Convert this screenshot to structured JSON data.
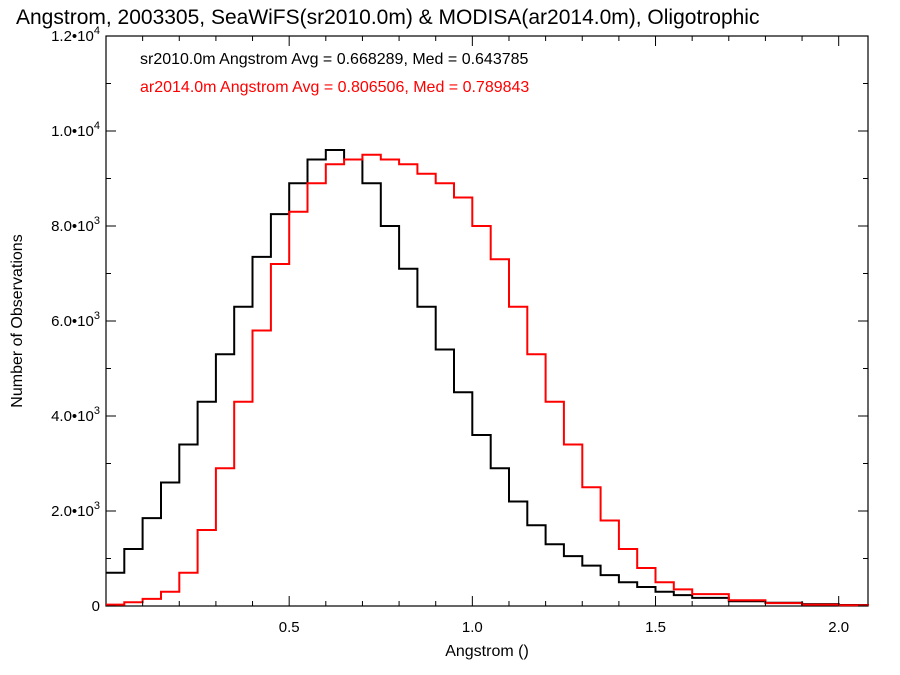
{
  "chart_data": {
    "type": "line",
    "title": "Angstrom, 2003305, SeaWiFS(sr2010.0m) & MODISA(ar2014.0m), Oligotrophic",
    "xlabel": "Angstrom ()",
    "ylabel": "Number of Observations",
    "xlim": [
      0.0,
      2.08
    ],
    "ylim": [
      0,
      12000
    ],
    "x_ticks": [
      {
        "value": 0.5,
        "label": "0.5"
      },
      {
        "value": 1.0,
        "label": "1.0"
      },
      {
        "value": 1.5,
        "label": "1.5"
      },
      {
        "value": 2.0,
        "label": "2.0"
      }
    ],
    "y_ticks": [
      {
        "value": 0,
        "mant": "0",
        "exp": ""
      },
      {
        "value": 2000,
        "mant": "2.0•10",
        "exp": "3"
      },
      {
        "value": 4000,
        "mant": "4.0•10",
        "exp": "3"
      },
      {
        "value": 6000,
        "mant": "6.0•10",
        "exp": "3"
      },
      {
        "value": 8000,
        "mant": "8.0•10",
        "exp": "3"
      },
      {
        "value": 10000,
        "mant": "1.0•10",
        "exp": "4"
      },
      {
        "value": 12000,
        "mant": "1.2•10",
        "exp": "4"
      }
    ],
    "grid": false,
    "legend_position": "top-left",
    "series": [
      {
        "name": "sr2010.0m",
        "legend_text": "sr2010.0m Angstrom Avg = 0.668289, Med = 0.643785",
        "color": "#000000",
        "x": [
          0.0,
          0.05,
          0.1,
          0.15,
          0.2,
          0.25,
          0.3,
          0.35,
          0.4,
          0.45,
          0.5,
          0.55,
          0.6,
          0.65,
          0.7,
          0.75,
          0.8,
          0.85,
          0.9,
          0.95,
          1.0,
          1.05,
          1.1,
          1.15,
          1.2,
          1.25,
          1.3,
          1.35,
          1.4,
          1.45,
          1.5,
          1.55,
          1.6,
          1.7,
          1.8,
          1.9,
          2.0,
          2.08
        ],
        "y": [
          700,
          1200,
          1850,
          2600,
          3400,
          4300,
          5300,
          6300,
          7350,
          8250,
          8900,
          9400,
          9600,
          9400,
          8900,
          8000,
          7100,
          6300,
          5400,
          4500,
          3600,
          2900,
          2200,
          1700,
          1300,
          1050,
          850,
          650,
          500,
          400,
          300,
          230,
          170,
          100,
          70,
          40,
          20,
          10
        ]
      },
      {
        "name": "ar2014.0m",
        "legend_text": "ar2014.0m Angstrom Avg = 0.806506, Med = 0.789843",
        "color": "#ff0000",
        "x": [
          0.0,
          0.05,
          0.1,
          0.15,
          0.2,
          0.25,
          0.3,
          0.35,
          0.4,
          0.45,
          0.5,
          0.55,
          0.6,
          0.65,
          0.7,
          0.75,
          0.8,
          0.85,
          0.9,
          0.95,
          1.0,
          1.05,
          1.1,
          1.15,
          1.2,
          1.25,
          1.3,
          1.35,
          1.4,
          1.45,
          1.5,
          1.55,
          1.6,
          1.7,
          1.8,
          1.9,
          2.0,
          2.08
        ],
        "y": [
          30,
          80,
          150,
          300,
          700,
          1600,
          2900,
          4300,
          5800,
          7200,
          8300,
          8900,
          9300,
          9400,
          9500,
          9400,
          9300,
          9100,
          8900,
          8600,
          8000,
          7300,
          6300,
          5300,
          4300,
          3400,
          2500,
          1800,
          1200,
          800,
          500,
          350,
          250,
          120,
          60,
          30,
          15,
          5
        ]
      }
    ]
  }
}
